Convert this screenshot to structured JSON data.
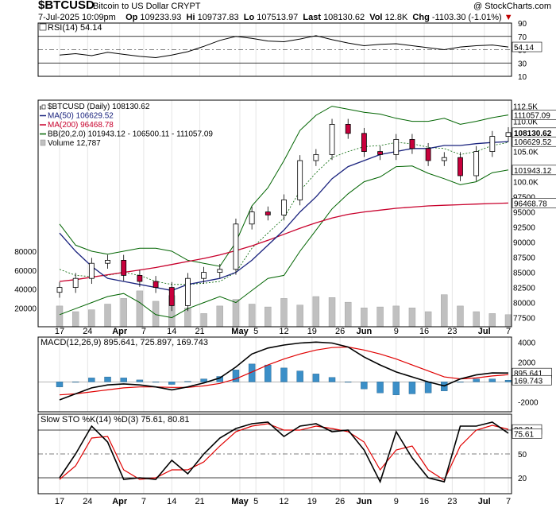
{
  "header": {
    "symbol": "$BTCUSD",
    "description": "Bitcoin to US Dollar  CRYPT",
    "copyright": "@ StockCharts.com",
    "date": "7-Jul-2025 10:09pm",
    "open_label": "Op",
    "open": "109233.93",
    "high_label": "Hi",
    "high": "109737.83",
    "low_label": "Lo",
    "low": "107513.97",
    "last_label": "Last",
    "last": "108130.62",
    "vol_label": "Vol",
    "vol": "12.8K",
    "chg_label": "Chg",
    "chg": "-1103.30 (-1.01%)"
  },
  "x_axis": {
    "ticks": [
      {
        "label": "17",
        "day": 0
      },
      {
        "label": "24",
        "day": 7
      },
      {
        "label": "Apr",
        "day": 15,
        "bold": true
      },
      {
        "label": "7",
        "day": 21
      },
      {
        "label": "14",
        "day": 28
      },
      {
        "label": "21",
        "day": 35
      },
      {
        "label": "May",
        "day": 45,
        "bold": true
      },
      {
        "label": "5",
        "day": 49
      },
      {
        "label": "12",
        "day": 56
      },
      {
        "label": "19",
        "day": 63
      },
      {
        "label": "26",
        "day": 70
      },
      {
        "label": "Jun",
        "day": 76,
        "bold": true
      },
      {
        "label": "9",
        "day": 84
      },
      {
        "label": "16",
        "day": 91
      },
      {
        "label": "23",
        "day": 98
      },
      {
        "label": "Jul",
        "day": 106,
        "bold": true
      },
      {
        "label": "7",
        "day": 112
      }
    ]
  },
  "colors": {
    "up": "#000000",
    "down": "#c8003c",
    "ma50": "#1a237e",
    "ma200": "#c8002c",
    "bb": "#006400",
    "volume": "#c0c0c0",
    "macd_hist": "#3b8fc8",
    "sto_k": "#000000",
    "sto_d": "#e00000"
  },
  "chart_data": [
    {
      "type": "line",
      "panel": "rsi",
      "legend": "RSI(14) 54.14",
      "value_box": "54.14",
      "ylim": [
        10,
        90
      ],
      "ticks": [
        "90",
        "70",
        "50",
        "30",
        "10"
      ],
      "x": [
        0,
        4,
        8,
        12,
        16,
        20,
        24,
        28,
        32,
        36,
        40,
        44,
        48,
        52,
        56,
        60,
        64,
        68,
        72,
        76,
        80,
        84,
        88,
        92,
        96,
        100,
        104,
        108,
        112
      ],
      "values": [
        42,
        44,
        41,
        46,
        43,
        40,
        38,
        42,
        47,
        55,
        64,
        70,
        67,
        63,
        62,
        66,
        71,
        65,
        60,
        56,
        58,
        59,
        56,
        53,
        50,
        54,
        56,
        57,
        54
      ]
    },
    {
      "type": "candlestick",
      "panel": "price",
      "legend": [
        {
          "text": "$BTCUSD (Daily) 108130.62"
        },
        {
          "text": "MA(50) 106629.52"
        },
        {
          "text": "MA(200) 96468.78"
        },
        {
          "text": "BB(20,2.0) 101943.12 - 106500.11 - 111057.09"
        },
        {
          "text": "Volume 12,787"
        }
      ],
      "ylim": [
        76000,
        113500
      ],
      "ticks": [
        "112.5K",
        "110.0K",
        "105.0K",
        "100.0K",
        "97500",
        "95000",
        "92500",
        "90000",
        "87500",
        "85000",
        "82500",
        "80000",
        "77500"
      ],
      "ticks_values": [
        112500,
        110000,
        105000,
        100000,
        97500,
        95000,
        92500,
        90000,
        87500,
        85000,
        82500,
        80000,
        77500
      ],
      "value_boxes": [
        {
          "text": "111057.09",
          "v": 111057
        },
        {
          "text": "108130.62",
          "v": 108130,
          "bold": true
        },
        {
          "text": "106629.52",
          "v": 106629
        },
        {
          "text": "101943.12",
          "v": 101943
        },
        {
          "text": "96468.78",
          "v": 96468
        }
      ],
      "x": [
        0,
        4,
        8,
        12,
        16,
        20,
        24,
        28,
        32,
        36,
        40,
        44,
        48,
        52,
        56,
        60,
        64,
        68,
        72,
        76,
        80,
        84,
        88,
        92,
        96,
        100,
        104,
        108,
        112
      ],
      "close": [
        82500,
        84000,
        86500,
        87000,
        84500,
        83500,
        82500,
        79500,
        84000,
        85000,
        85500,
        93000,
        95000,
        94500,
        97000,
        103500,
        104500,
        109500,
        108000,
        105000,
        104500,
        107000,
        105500,
        103500,
        104000,
        101000,
        105000,
        107500,
        108130
      ],
      "ma50": [
        91500,
        88500,
        86000,
        84000,
        83500,
        83000,
        82500,
        82000,
        83000,
        83500,
        84000,
        85000,
        87000,
        89500,
        92000,
        95000,
        97500,
        100500,
        102500,
        103500,
        104500,
        105000,
        105500,
        105500,
        106000,
        106000,
        106300,
        106500,
        106630
      ],
      "ma200": [
        83500,
        83800,
        84200,
        84600,
        85000,
        85400,
        85800,
        86300,
        86800,
        87300,
        87900,
        88600,
        89400,
        90300,
        91300,
        92300,
        93200,
        94000,
        94600,
        95000,
        95300,
        95600,
        95800,
        96000,
        96100,
        96200,
        96300,
        96400,
        96470
      ],
      "bb_upper": [
        93000,
        89500,
        88500,
        88000,
        88500,
        89000,
        89000,
        88500,
        87000,
        86500,
        86000,
        90000,
        96000,
        99000,
        103500,
        108500,
        111000,
        112500,
        112000,
        111500,
        111200,
        110500,
        110000,
        110000,
        110500,
        109500,
        110000,
        110600,
        111057
      ],
      "bb_mid": [
        85500,
        84500,
        84300,
        84500,
        85000,
        84500,
        83500,
        83000,
        83000,
        83200,
        83500,
        85000,
        89000,
        91500,
        94000,
        98500,
        101500,
        104000,
        105000,
        105800,
        106000,
        106500,
        106300,
        105700,
        105500,
        104500,
        105000,
        106000,
        106500
      ],
      "bb_lower": [
        78000,
        79000,
        80000,
        81000,
        81500,
        80000,
        78000,
        77500,
        79000,
        80000,
        81000,
        80000,
        82000,
        84000,
        84500,
        88500,
        92000,
        95500,
        98000,
        100000,
        100800,
        102500,
        102600,
        101400,
        100500,
        99500,
        100000,
        101500,
        101943
      ],
      "volume": [
        22000,
        16000,
        18000,
        24000,
        30000,
        38000,
        27000,
        33000,
        20000,
        14000,
        22000,
        29000,
        24000,
        21000,
        30000,
        23000,
        32000,
        31000,
        26000,
        20000,
        21000,
        22000,
        20000,
        16000,
        34000,
        22000,
        16000,
        14000,
        12787
      ]
    },
    {
      "type": "line",
      "panel": "macd",
      "legend": "MACD(12,26,9) 895.641, 725.897, 169.743",
      "ylim": [
        -3000,
        4500
      ],
      "ticks": [
        "4000",
        "2000",
        "0",
        "-2000"
      ],
      "ticks_values": [
        4000,
        2000,
        0,
        -2000
      ],
      "value_boxes": [
        {
          "text": "895.641",
          "v": 895.641
        },
        {
          "text": "169.743",
          "v": 169.743
        }
      ],
      "x": [
        0,
        4,
        8,
        12,
        16,
        20,
        24,
        28,
        32,
        36,
        40,
        44,
        48,
        52,
        56,
        60,
        64,
        68,
        72,
        76,
        80,
        84,
        88,
        92,
        96,
        100,
        104,
        108,
        112
      ],
      "macd": [
        -1800,
        -1200,
        -600,
        -300,
        -200,
        -300,
        -500,
        -800,
        -500,
        -100,
        400,
        1500,
        2800,
        3400,
        3700,
        3900,
        4000,
        3900,
        3500,
        2500,
        1700,
        1000,
        500,
        0,
        -400,
        300,
        700,
        900,
        896
      ],
      "signal": [
        -1300,
        -1200,
        -1000,
        -800,
        -600,
        -500,
        -500,
        -550,
        -550,
        -400,
        -150,
        300,
        1000,
        1700,
        2300,
        2800,
        3200,
        3450,
        3500,
        3200,
        2800,
        2300,
        1700,
        1100,
        500,
        300,
        400,
        600,
        726
      ],
      "histogram": [
        -500,
        0,
        400,
        500,
        400,
        200,
        0,
        -250,
        50,
        300,
        550,
        1200,
        1800,
        1700,
        1400,
        1100,
        800,
        450,
        0,
        -700,
        -1100,
        -1300,
        -1200,
        -1100,
        -900,
        0,
        300,
        300,
        170
      ]
    },
    {
      "type": "line",
      "panel": "sto",
      "legend": "Slow STO %K(14) %D(3) 75.61, 80.81",
      "ylim": [
        0,
        100
      ],
      "ticks": [
        "80",
        "50",
        "20"
      ],
      "ticks_values": [
        80,
        50,
        20
      ],
      "value_boxes": [
        {
          "text": "80.81",
          "v": 80.81
        },
        {
          "text": "75.61",
          "v": 75.61
        }
      ],
      "x": [
        0,
        4,
        8,
        12,
        16,
        20,
        24,
        28,
        32,
        36,
        40,
        44,
        48,
        52,
        56,
        60,
        64,
        68,
        72,
        76,
        80,
        84,
        88,
        92,
        96,
        100,
        104,
        108,
        112
      ],
      "k": [
        20,
        50,
        85,
        65,
        18,
        20,
        18,
        42,
        25,
        50,
        70,
        82,
        88,
        90,
        72,
        85,
        88,
        78,
        80,
        55,
        15,
        78,
        45,
        20,
        15,
        85,
        85,
        90,
        76
      ],
      "d": [
        18,
        35,
        70,
        72,
        30,
        18,
        20,
        30,
        30,
        40,
        60,
        78,
        85,
        88,
        80,
        80,
        85,
        82,
        78,
        65,
        30,
        55,
        60,
        30,
        17,
        60,
        80,
        86,
        81
      ]
    }
  ]
}
